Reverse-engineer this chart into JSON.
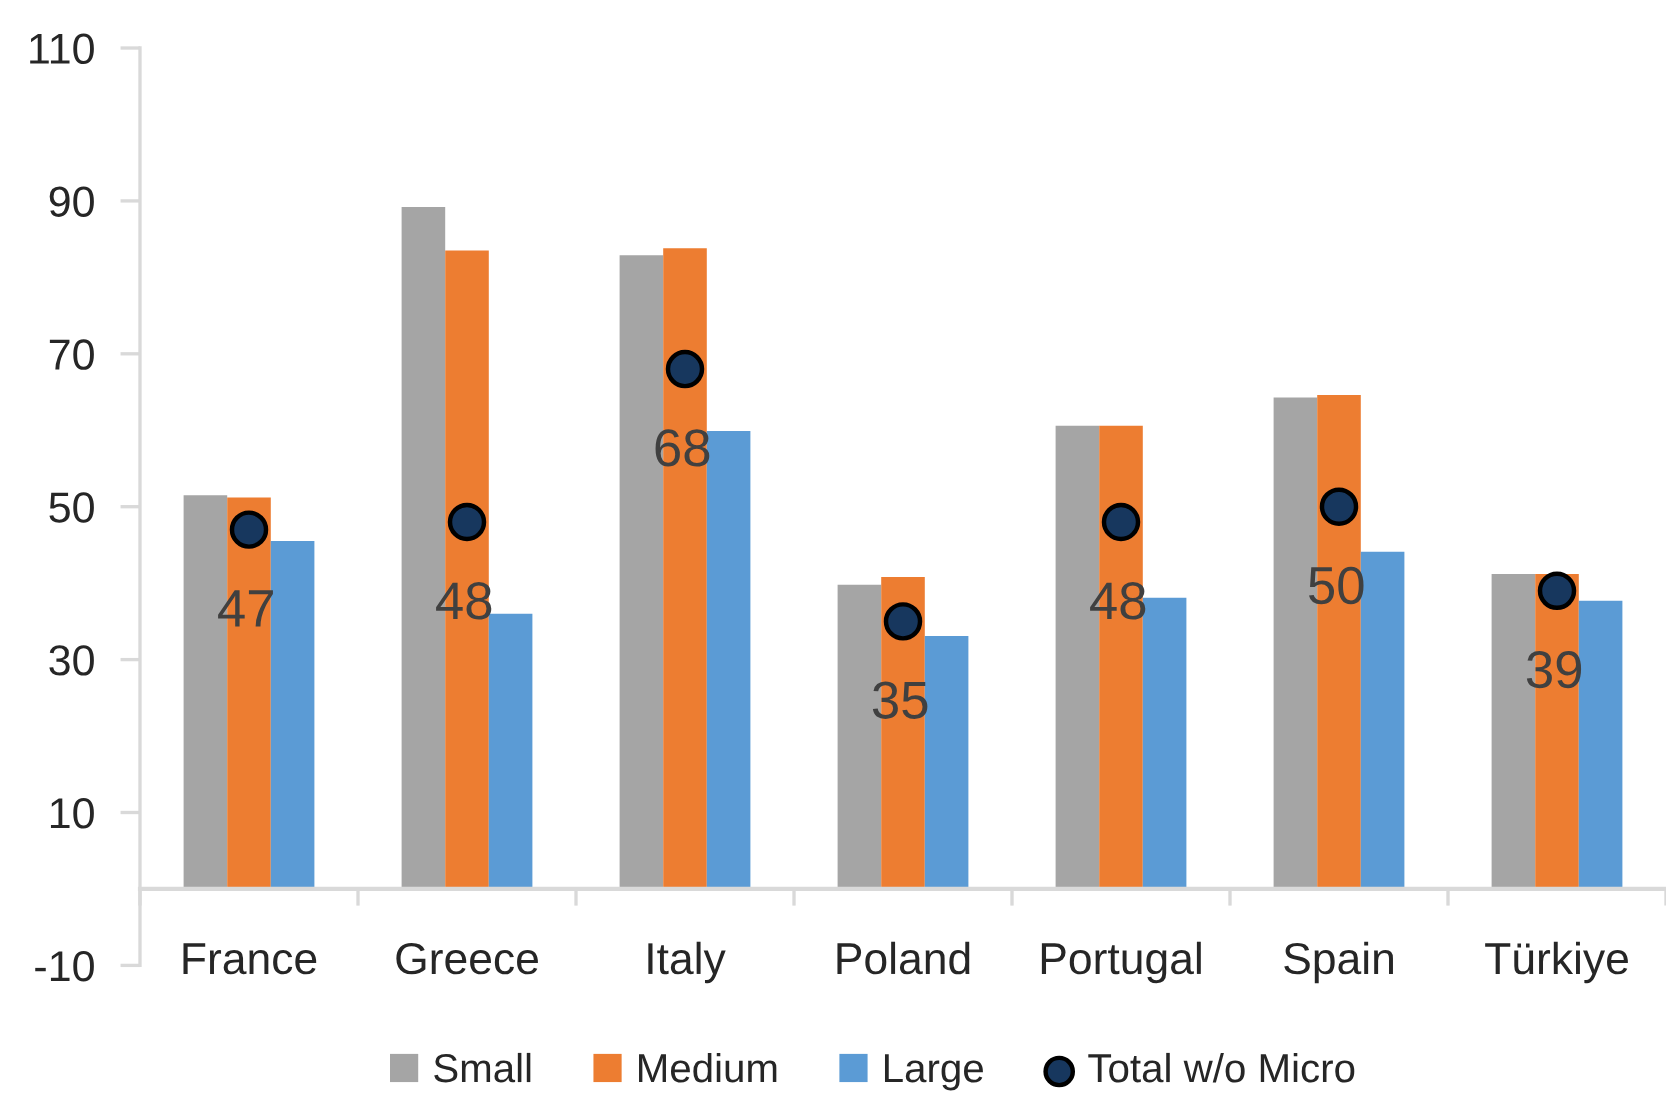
{
  "chart_data": {
    "type": "bar",
    "categories": [
      "France",
      "Greece",
      "Italy",
      "Poland",
      "Portugal",
      "Spain",
      "Türkiye"
    ],
    "series": [
      {
        "name": "Small",
        "color": "#a5a5a5",
        "values": [
          51.5,
          89.2,
          82.9,
          39.8,
          60.6,
          64.3,
          41.2
        ]
      },
      {
        "name": "Medium",
        "color": "#ed7d31",
        "values": [
          51.2,
          83.5,
          83.8,
          40.8,
          60.6,
          64.6,
          41.2
        ]
      },
      {
        "name": "Large",
        "color": "#5b9bd5",
        "values": [
          45.5,
          36.0,
          59.9,
          33.1,
          38.1,
          44.1,
          37.7
        ]
      },
      {
        "name": "Total w/o Micro",
        "type": "scatter",
        "marker": "circle",
        "color": "#17375e",
        "data_labels": true,
        "values": [
          47,
          48,
          68,
          35,
          48,
          50,
          39
        ]
      }
    ],
    "ylim": [
      -10,
      110
    ],
    "yticks": [
      -10,
      10,
      30,
      50,
      70,
      90,
      110
    ],
    "legend": "bottom"
  }
}
